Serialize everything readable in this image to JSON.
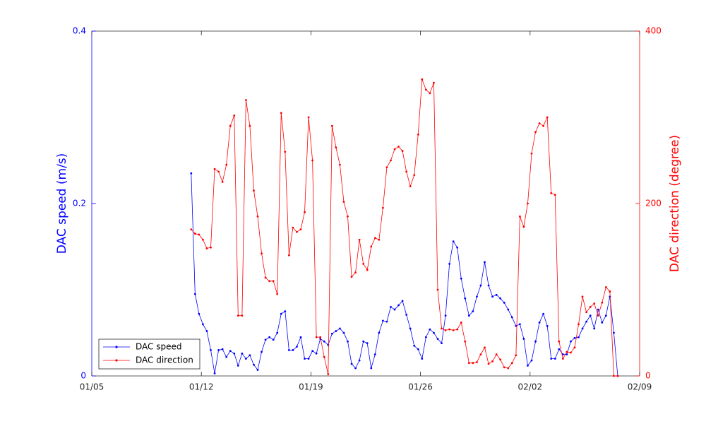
{
  "chart_data": {
    "type": "line",
    "ylabel": "DAC speed (m/s)",
    "y2label": "DAC direction (degree)",
    "xlim": [
      5,
      40
    ],
    "xticks": [
      {
        "value": 5,
        "label": "01/05"
      },
      {
        "value": 12,
        "label": "01/12"
      },
      {
        "value": 19,
        "label": "01/19"
      },
      {
        "value": 26,
        "label": "01/26"
      },
      {
        "value": 33,
        "label": "02/02"
      },
      {
        "value": 40,
        "label": "02/09"
      }
    ],
    "ylim": [
      0,
      0.4
    ],
    "yticks": [
      0,
      0.2,
      0.4
    ],
    "y2lim": [
      0,
      400
    ],
    "y2ticks": [
      0,
      200,
      400
    ],
    "left_axis_color": "#0000ff",
    "right_axis_color": "#ff0000",
    "legend": "lower left",
    "x": [
      11.35,
      11.6,
      11.85,
      12.1,
      12.35,
      12.6,
      12.85,
      13.1,
      13.35,
      13.6,
      13.85,
      14.1,
      14.35,
      14.6,
      14.85,
      15.1,
      15.35,
      15.6,
      15.85,
      16.1,
      16.35,
      16.6,
      16.85,
      17.1,
      17.35,
      17.6,
      17.85,
      18.1,
      18.35,
      18.6,
      18.85,
      19.1,
      19.35,
      19.6,
      19.85,
      20.1,
      20.35,
      20.6,
      20.85,
      21.1,
      21.35,
      21.6,
      21.85,
      22.1,
      22.35,
      22.6,
      22.85,
      23.1,
      23.35,
      23.6,
      23.85,
      24.1,
      24.35,
      24.6,
      24.85,
      25.1,
      25.35,
      25.6,
      25.85,
      26.1,
      26.35,
      26.6,
      26.85,
      27.1,
      27.35,
      27.6,
      27.85,
      28.1,
      28.35,
      28.6,
      28.85,
      29.1,
      29.35,
      29.6,
      29.85,
      30.1,
      30.35,
      30.6,
      30.85,
      31.1,
      31.35,
      31.6,
      31.85,
      32.1,
      32.35,
      32.6,
      32.85,
      33.1,
      33.35,
      33.6,
      33.85,
      34.1,
      34.35,
      34.6,
      34.85,
      35.1,
      35.35,
      35.6,
      35.85,
      36.1,
      36.35,
      36.6,
      36.85,
      37.1,
      37.35,
      37.6,
      37.85,
      38.1,
      38.35,
      38.6
    ],
    "series": [
      {
        "name": "DAC speed",
        "color": "#0000ff",
        "axis": "y",
        "values": [
          0.235,
          0.095,
          0.072,
          0.06,
          0.052,
          0.03,
          0.003,
          0.03,
          0.031,
          0.022,
          0.029,
          0.026,
          0.012,
          0.026,
          0.02,
          0.024,
          0.013,
          0.007,
          0.028,
          0.042,
          0.045,
          0.042,
          0.05,
          0.072,
          0.075,
          0.03,
          0.03,
          0.034,
          0.045,
          0.02,
          0.02,
          0.029,
          0.026,
          0.043,
          0.04,
          0.036,
          0.049,
          0.052,
          0.055,
          0.05,
          0.04,
          0.014,
          0.009,
          0.018,
          0.04,
          0.038,
          0.009,
          0.025,
          0.05,
          0.064,
          0.063,
          0.08,
          0.077,
          0.082,
          0.087,
          0.071,
          0.055,
          0.035,
          0.031,
          0.02,
          0.045,
          0.054,
          0.05,
          0.043,
          0.038,
          0.07,
          0.13,
          0.156,
          0.149,
          0.113,
          0.09,
          0.07,
          0.075,
          0.092,
          0.105,
          0.132,
          0.105,
          0.092,
          0.094,
          0.09,
          0.085,
          0.077,
          0.068,
          0.058,
          0.06,
          0.043,
          0.012,
          0.018,
          0.04,
          0.062,
          0.072,
          0.058,
          0.02,
          0.02,
          0.031,
          0.025,
          0.025,
          0.04,
          0.044,
          0.045,
          0.055,
          0.063,
          0.07,
          0.055,
          0.077,
          0.062,
          0.07,
          0.092,
          0.05,
          0
        ]
      },
      {
        "name": "DAC direction",
        "color": "#ff0000",
        "axis": "y2",
        "values": [
          170,
          165,
          164,
          158,
          148,
          149,
          240,
          237,
          225,
          245,
          290,
          302,
          70,
          70,
          320,
          290,
          215,
          185,
          142,
          114,
          110,
          110,
          95,
          305,
          260,
          140,
          172,
          167,
          170,
          190,
          300,
          250,
          45,
          45,
          22,
          2,
          290,
          265,
          245,
          202,
          185,
          115,
          120,
          158,
          130,
          123,
          150,
          160,
          158,
          195,
          242,
          250,
          263,
          266,
          261,
          237,
          220,
          233,
          280,
          344,
          332,
          328,
          340,
          100,
          55,
          53,
          54,
          53,
          54,
          62,
          40,
          15,
          15,
          16,
          25,
          33,
          14,
          17,
          25,
          19,
          10,
          9,
          15,
          24,
          185,
          173,
          200,
          258,
          283,
          293,
          290,
          300,
          212,
          210,
          40,
          20,
          28,
          27,
          33,
          60,
          92,
          74,
          80,
          84,
          70,
          85,
          103,
          98,
          0,
          0
        ]
      }
    ]
  }
}
